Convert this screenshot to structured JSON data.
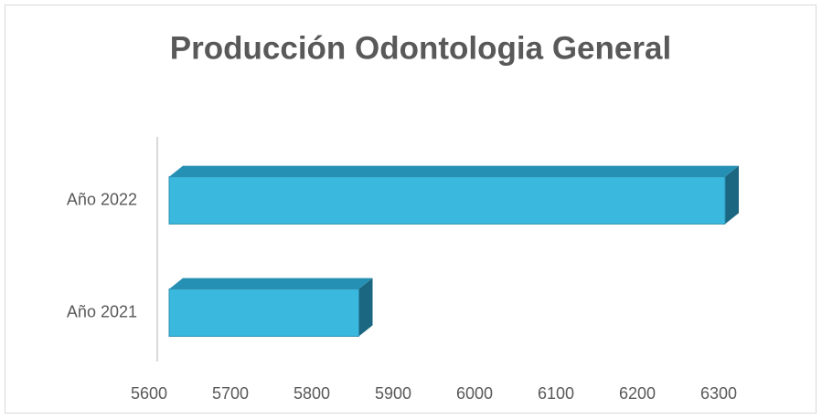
{
  "chart_data": {
    "type": "bar",
    "orientation": "horizontal",
    "title": "Producción Odontologia General",
    "categories": [
      "Año 2021",
      "Año 2022"
    ],
    "values": [
      5850,
      6300
    ],
    "color": "#3bb8dd",
    "xlim": [
      5600,
      6300
    ],
    "xticks": [
      5600,
      5700,
      5800,
      5900,
      6000,
      6100,
      6200,
      6300
    ],
    "grid": false
  }
}
